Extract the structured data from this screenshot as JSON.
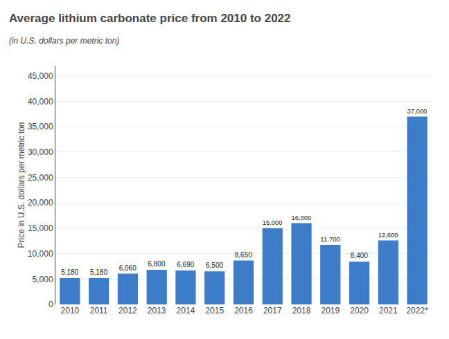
{
  "chart_data": {
    "type": "bar",
    "title": "Average lithium carbonate price from 2010 to 2022",
    "subtitle": "(in U.S. dollars per metric ton)",
    "ylabel": "Price in U.S. dollars per metric ton",
    "categories": [
      "2010",
      "2011",
      "2012",
      "2013",
      "2014",
      "2015",
      "2016",
      "2017",
      "2018",
      "2019",
      "2020",
      "2021",
      "2022*"
    ],
    "values": [
      5180,
      5180,
      6060,
      6800,
      6690,
      6500,
      8650,
      15000,
      16000,
      11700,
      8400,
      12600,
      37000
    ],
    "value_labels": [
      "5,180",
      "5,180",
      "6,060",
      "6,800",
      "6,690",
      "6,500",
      "8,650",
      "15,000",
      "16,000",
      "11,700",
      "8,400",
      "12,600",
      "37,000"
    ],
    "data_labels": true,
    "color": "#3d7cc9",
    "ylim": [
      0,
      47000
    ],
    "yticks": [
      0,
      {
        "value": 5000,
        "label": "5,000"
      },
      {
        "value": 10000,
        "label": "10,000"
      },
      {
        "value": 15000,
        "label": "15,000"
      },
      {
        "value": 20000,
        "label": "20,000"
      },
      {
        "value": 25000,
        "label": "25,000"
      },
      {
        "value": 30000,
        "label": "30,000"
      },
      {
        "value": 35000,
        "label": "35,000"
      },
      {
        "value": 40000,
        "label": "40,000"
      },
      {
        "value": 45000,
        "label": "45,000"
      }
    ],
    "grid": true
  }
}
